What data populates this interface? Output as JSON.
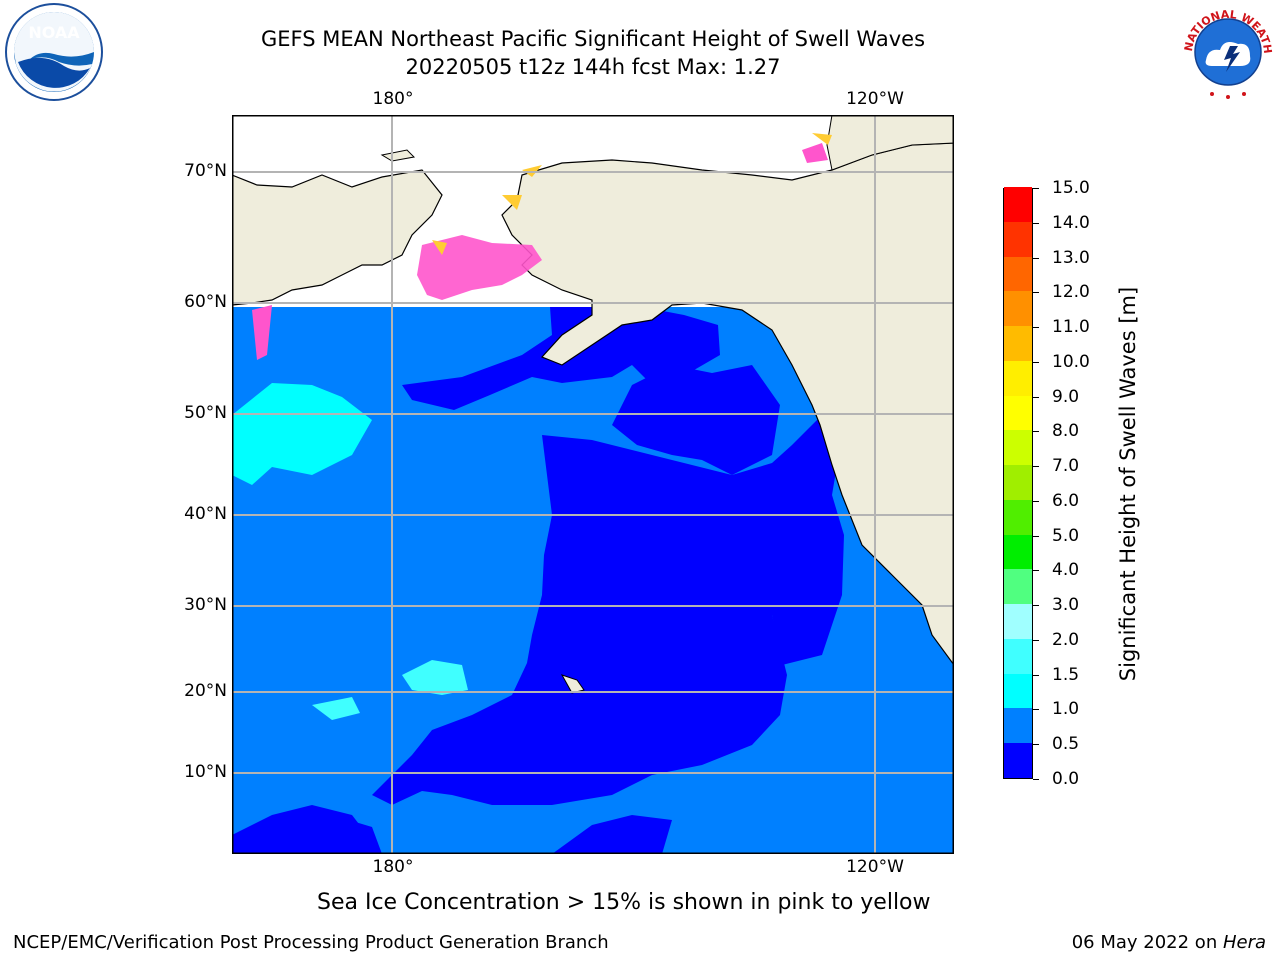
{
  "title": {
    "line1": "GEFS MEAN Northeast Pacific Significant Height of Swell Waves",
    "line2": "20220505 t12z 144h fcst   Max: 1.27"
  },
  "logos": {
    "left": {
      "icon": "noaa-logo-icon",
      "text": "NOAA"
    },
    "right": {
      "icon": "national-weather-service-logo-icon",
      "text": "NATIONAL WEATHER SERVICE"
    }
  },
  "map": {
    "lon_labels_top": [
      "180°",
      "120°W"
    ],
    "lon_labels_bottom": [
      "180°",
      "120°W"
    ],
    "lat_labels": [
      "70°N",
      "60°N",
      "50°N",
      "40°N",
      "30°N",
      "20°N",
      "10°N"
    ],
    "colors": {
      "land": "#efeddc",
      "ocean_light": "#0080ff",
      "ocean_dark": "#0000ff",
      "cyan": "#00ffff",
      "pale_cyan": "#55ffff",
      "ice_pink": "#ff55cc",
      "ice_yellow": "#ffcc33"
    }
  },
  "colorbar": {
    "title": "Significant Height of Swell Waves [m]",
    "tick_labels": [
      "0.0",
      "0.5",
      "1.0",
      "1.5",
      "2.0",
      "3.0",
      "4.0",
      "5.0",
      "6.0",
      "7.0",
      "8.0",
      "9.0",
      "10.0",
      "11.0",
      "12.0",
      "13.0",
      "14.0",
      "15.0"
    ],
    "colors": [
      "#0000ff",
      "#0080ff",
      "#00ffff",
      "#40ffff",
      "#a0ffff",
      "#50ff80",
      "#00ee00",
      "#50ee00",
      "#a0ee00",
      "#ccff00",
      "#ffff00",
      "#ffee00",
      "#ffbb00",
      "#ff9000",
      "#ff6600",
      "#ff3300",
      "#ff0000"
    ]
  },
  "footnote": "Sea Ice Concentration > 15% is shown in pink to yellow",
  "footer": {
    "left": "NCEP/EMC/Verification Post Processing Product Generation Branch",
    "date": "06 May 2022 on ",
    "host": "Hera"
  }
}
